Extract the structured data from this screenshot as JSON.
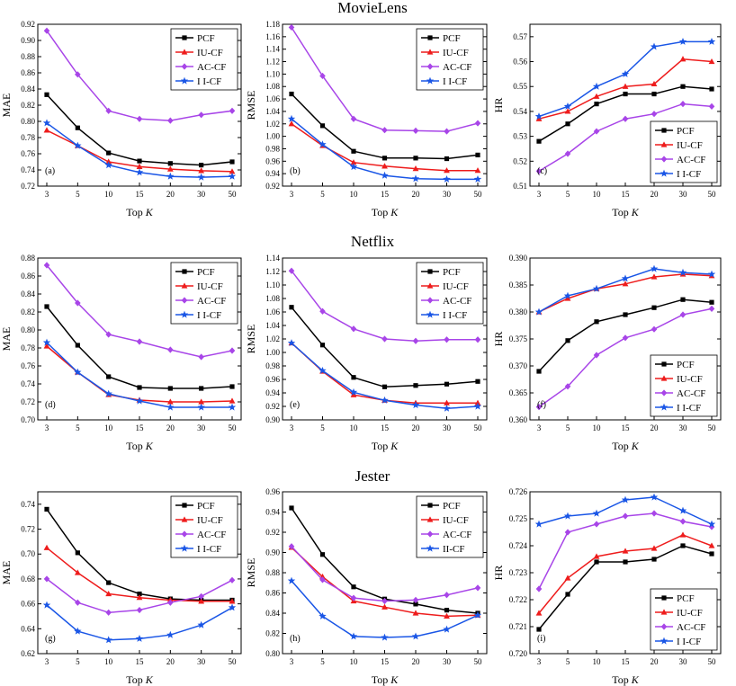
{
  "datasets": [
    {
      "title": "MovieLens"
    },
    {
      "title": "Netflix"
    },
    {
      "title": "Jester"
    }
  ],
  "colors": {
    "PCF": "#000000",
    "IU-CF": "#ee1c1c",
    "AC-CF": "#a845e8",
    "I I-CF": "#1a56e6"
  },
  "markers": {
    "PCF": "square",
    "IU-CF": "triangle",
    "AC-CF": "diamond",
    "I I-CF": "star"
  },
  "chart_data": [
    {
      "type": "line",
      "id": "a",
      "panel_label": "(a)",
      "xlabel": "Top ",
      "xlabel_var": "K",
      "ylabel": "MAE",
      "categories": [
        "3",
        "5",
        "10",
        "15",
        "20",
        "30",
        "50"
      ],
      "ylim": [
        0.72,
        0.92
      ],
      "yticks": [
        "0.72",
        "0.74",
        "0.76",
        "0.78",
        "0.80",
        "0.82",
        "0.84",
        "0.86",
        "0.88",
        "0.90",
        "0.92"
      ],
      "legend_position": "top-right",
      "series": [
        {
          "name": "PCF",
          "values": [
            0.833,
            0.792,
            0.761,
            0.751,
            0.748,
            0.746,
            0.75
          ]
        },
        {
          "name": "IU-CF",
          "values": [
            0.789,
            0.77,
            0.75,
            0.744,
            0.741,
            0.739,
            0.738
          ]
        },
        {
          "name": "AC-CF",
          "values": [
            0.912,
            0.858,
            0.813,
            0.803,
            0.801,
            0.808,
            0.813
          ]
        },
        {
          "name": "I I-CF",
          "values": [
            0.798,
            0.77,
            0.746,
            0.737,
            0.732,
            0.731,
            0.732
          ]
        }
      ]
    },
    {
      "type": "line",
      "id": "b",
      "panel_label": "(b)",
      "xlabel": "Top ",
      "xlabel_var": "K",
      "ylabel": "RMSE",
      "categories": [
        "3",
        "5",
        "10",
        "15",
        "20",
        "30",
        "50"
      ],
      "ylim": [
        0.92,
        1.18
      ],
      "yticks": [
        "0.92",
        "0.94",
        "0.96",
        "0.98",
        "1.00",
        "1.02",
        "1.04",
        "1.06",
        "1.08",
        "1.10",
        "1.12",
        "1.14",
        "1.16",
        "1.18"
      ],
      "legend_position": "top-right",
      "series": [
        {
          "name": "PCF",
          "values": [
            1.068,
            1.017,
            0.976,
            0.965,
            0.965,
            0.964,
            0.97
          ]
        },
        {
          "name": "IU-CF",
          "values": [
            1.02,
            0.985,
            0.958,
            0.952,
            0.948,
            0.945,
            0.945
          ]
        },
        {
          "name": "AC-CF",
          "values": [
            1.175,
            1.097,
            1.028,
            1.01,
            1.009,
            1.008,
            1.021
          ]
        },
        {
          "name": "I I-CF",
          "values": [
            1.028,
            0.987,
            0.951,
            0.937,
            0.932,
            0.931,
            0.931
          ]
        }
      ]
    },
    {
      "type": "line",
      "id": "c",
      "panel_label": "(c)",
      "xlabel": "Top ",
      "xlabel_var": "K",
      "ylabel": "HR",
      "categories": [
        "3",
        "5",
        "10",
        "15",
        "20",
        "30",
        "50"
      ],
      "ylim": [
        0.51,
        0.575
      ],
      "yticks": [
        "0.51",
        "0.52",
        "0.53",
        "0.54",
        "0.55",
        "0.56",
        "0.57"
      ],
      "legend_position": "bottom-right",
      "series": [
        {
          "name": "PCF",
          "values": [
            0.528,
            0.535,
            0.543,
            0.547,
            0.547,
            0.55,
            0.549
          ]
        },
        {
          "name": "IU-CF",
          "values": [
            0.537,
            0.54,
            0.546,
            0.55,
            0.551,
            0.561,
            0.56
          ]
        },
        {
          "name": "AC-CF",
          "values": [
            0.516,
            0.523,
            0.532,
            0.537,
            0.539,
            0.543,
            0.542
          ]
        },
        {
          "name": "I I-CF",
          "values": [
            0.538,
            0.542,
            0.55,
            0.555,
            0.566,
            0.568,
            0.568
          ]
        }
      ]
    },
    {
      "type": "line",
      "id": "d",
      "panel_label": "(d)",
      "xlabel": "Top ",
      "xlabel_var": "K",
      "ylabel": "MAE",
      "categories": [
        "3",
        "5",
        "10",
        "15",
        "20",
        "30",
        "50"
      ],
      "ylim": [
        0.7,
        0.88
      ],
      "yticks": [
        "0.70",
        "0.72",
        "0.74",
        "0.76",
        "0.78",
        "0.80",
        "0.82",
        "0.84",
        "0.86",
        "0.88"
      ],
      "legend_position": "top-right",
      "series": [
        {
          "name": "PCF",
          "values": [
            0.826,
            0.783,
            0.748,
            0.736,
            0.735,
            0.735,
            0.737
          ]
        },
        {
          "name": "IU-CF",
          "values": [
            0.782,
            0.753,
            0.728,
            0.722,
            0.72,
            0.72,
            0.721
          ]
        },
        {
          "name": "AC-CF",
          "values": [
            0.872,
            0.83,
            0.795,
            0.787,
            0.778,
            0.77,
            0.777
          ]
        },
        {
          "name": "I I-CF",
          "values": [
            0.786,
            0.753,
            0.729,
            0.721,
            0.714,
            0.714,
            0.714
          ]
        }
      ]
    },
    {
      "type": "line",
      "id": "e",
      "panel_label": "(e)",
      "xlabel": "Top ",
      "xlabel_var": "K",
      "ylabel": "RMSE",
      "categories": [
        "3",
        "5",
        "10",
        "15",
        "20",
        "30",
        "50"
      ],
      "ylim": [
        0.9,
        1.14
      ],
      "yticks": [
        "0.90",
        "0.92",
        "0.94",
        "0.96",
        "0.98",
        "1.00",
        "1.02",
        "1.04",
        "1.06",
        "1.08",
        "1.10",
        "1.12",
        "1.14"
      ],
      "legend_position": "top-right",
      "series": [
        {
          "name": "PCF",
          "values": [
            1.067,
            1.011,
            0.963,
            0.949,
            0.951,
            0.953,
            0.957
          ]
        },
        {
          "name": "IU-CF",
          "values": [
            1.014,
            0.972,
            0.937,
            0.929,
            0.925,
            0.925,
            0.925
          ]
        },
        {
          "name": "AC-CF",
          "values": [
            1.121,
            1.061,
            1.035,
            1.02,
            1.017,
            1.019,
            1.019
          ]
        },
        {
          "name": "I I-CF",
          "values": [
            1.014,
            0.973,
            0.941,
            0.929,
            0.922,
            0.917,
            0.92
          ]
        }
      ]
    },
    {
      "type": "line",
      "id": "f",
      "panel_label": "(f)",
      "xlabel": "Top ",
      "xlabel_var": "K",
      "ylabel": "HR",
      "categories": [
        "3",
        "5",
        "10",
        "15",
        "20",
        "30",
        "50"
      ],
      "ylim": [
        0.36,
        0.39
      ],
      "yticks": [
        "0.360",
        "0.365",
        "0.370",
        "0.375",
        "0.380",
        "0.385",
        "0.390"
      ],
      "legend_position": "bottom-right",
      "series": [
        {
          "name": "PCF",
          "values": [
            0.369,
            0.3747,
            0.3782,
            0.3795,
            0.3808,
            0.3823,
            0.3818
          ]
        },
        {
          "name": "IU-CF",
          "values": [
            0.38,
            0.3825,
            0.3843,
            0.3852,
            0.3865,
            0.387,
            0.3867
          ]
        },
        {
          "name": "AC-CF",
          "values": [
            0.3624,
            0.3662,
            0.372,
            0.3752,
            0.3768,
            0.3795,
            0.3806
          ]
        },
        {
          "name": "I I-CF",
          "values": [
            0.38,
            0.383,
            0.3843,
            0.3862,
            0.388,
            0.3873,
            0.387
          ]
        }
      ]
    },
    {
      "type": "line",
      "id": "g",
      "panel_label": "(g)",
      "xlabel": "Top ",
      "xlabel_var": "K",
      "ylabel": "MAE",
      "categories": [
        "3",
        "5",
        "10",
        "15",
        "20",
        "30",
        "50"
      ],
      "ylim": [
        0.62,
        0.75
      ],
      "yticks": [
        "0.62",
        "0.64",
        "0.66",
        "0.68",
        "0.70",
        "0.72",
        "0.74"
      ],
      "legend_position": "top-right",
      "series": [
        {
          "name": "PCF",
          "values": [
            0.736,
            0.701,
            0.677,
            0.668,
            0.664,
            0.663,
            0.663
          ]
        },
        {
          "name": "IU-CF",
          "values": [
            0.705,
            0.685,
            0.668,
            0.665,
            0.663,
            0.662,
            0.662
          ]
        },
        {
          "name": "AC-CF",
          "values": [
            0.68,
            0.661,
            0.653,
            0.655,
            0.661,
            0.666,
            0.679
          ]
        },
        {
          "name": "I I-CF",
          "values": [
            0.659,
            0.638,
            0.631,
            0.632,
            0.635,
            0.643,
            0.657
          ]
        }
      ]
    },
    {
      "type": "line",
      "id": "h",
      "panel_label": "(h)",
      "xlabel": "Top ",
      "xlabel_var": "K",
      "ylabel": "RMSE",
      "categories": [
        "3",
        "5",
        "10",
        "15",
        "20",
        "30",
        "50"
      ],
      "ylim": [
        0.8,
        0.96
      ],
      "yticks": [
        "0.80",
        "0.82",
        "0.84",
        "0.86",
        "0.88",
        "0.90",
        "0.92",
        "0.94",
        "0.96"
      ],
      "legend_position": "top-right",
      "series": [
        {
          "name": "PCF",
          "values": [
            0.944,
            0.898,
            0.866,
            0.854,
            0.849,
            0.843,
            0.84
          ]
        },
        {
          "name": "IU-CF",
          "values": [
            0.905,
            0.876,
            0.852,
            0.846,
            0.84,
            0.837,
            0.838
          ]
        },
        {
          "name": "AC-CF",
          "values": [
            0.906,
            0.873,
            0.855,
            0.852,
            0.853,
            0.858,
            0.865
          ]
        },
        {
          "name": "II-CF",
          "values": [
            0.872,
            0.837,
            0.817,
            0.816,
            0.817,
            0.824,
            0.838
          ]
        }
      ]
    },
    {
      "type": "line",
      "id": "i",
      "panel_label": "(i)",
      "xlabel": "Top ",
      "xlabel_var": "K",
      "ylabel": "HR",
      "categories": [
        "3",
        "5",
        "10",
        "15",
        "20",
        "30",
        "50"
      ],
      "ylim": [
        0.72,
        0.726
      ],
      "yticks": [
        "0.720",
        "0.721",
        "0.722",
        "0.723",
        "0.724",
        "0.725",
        "0.726"
      ],
      "legend_position": "bottom-right",
      "series": [
        {
          "name": "PCF",
          "values": [
            0.7209,
            0.7222,
            0.7234,
            0.7234,
            0.7235,
            0.724,
            0.7237
          ]
        },
        {
          "name": "IU-CF",
          "values": [
            0.7215,
            0.7228,
            0.7236,
            0.7238,
            0.7239,
            0.7244,
            0.724
          ]
        },
        {
          "name": "AC-CF",
          "values": [
            0.7224,
            0.7245,
            0.7248,
            0.7251,
            0.7252,
            0.7249,
            0.7247
          ]
        },
        {
          "name": "I I-CF",
          "values": [
            0.7248,
            0.7251,
            0.7252,
            0.7257,
            0.7258,
            0.7253,
            0.7248
          ]
        }
      ]
    }
  ]
}
